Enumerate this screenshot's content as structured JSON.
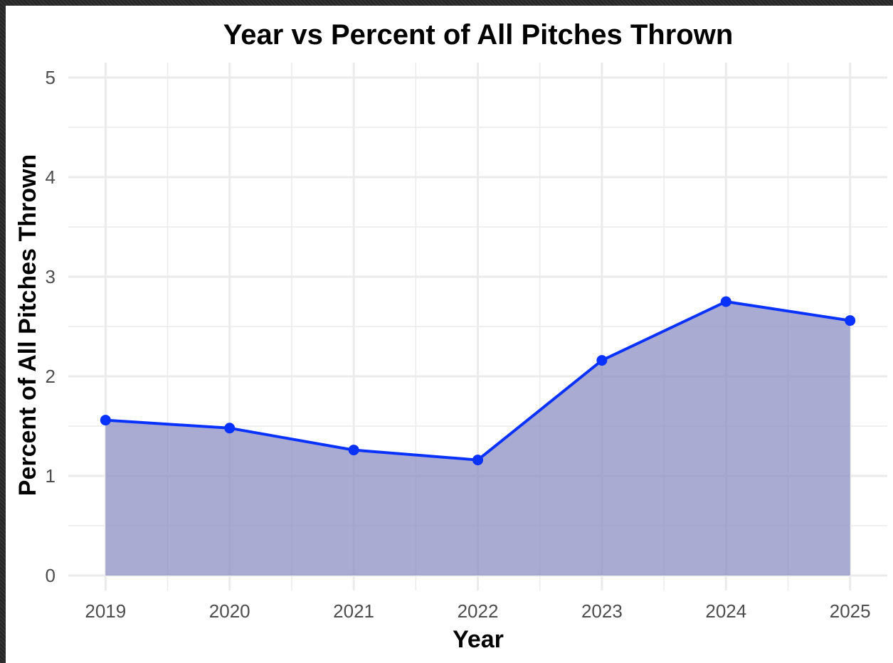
{
  "chart_data": {
    "type": "area",
    "title": "Year vs Percent of All Pitches Thrown",
    "xlabel": "Year",
    "ylabel": "Percent of All Pitches Thrown",
    "x": [
      2019,
      2020,
      2021,
      2022,
      2023,
      2024,
      2025
    ],
    "x_tick_labels": [
      "2019",
      "2020",
      "2021",
      "2022",
      "2023",
      "2024",
      "2025"
    ],
    "y_tick_labels": [
      "0",
      "1",
      "2",
      "3",
      "4",
      "5"
    ],
    "y_ticks": [
      0,
      1,
      2,
      3,
      4,
      5
    ],
    "series": [
      {
        "values": [
          1.56,
          1.48,
          1.26,
          1.16,
          2.16,
          2.75,
          2.56
        ]
      }
    ],
    "xlim": [
      2018.7,
      2025.3
    ],
    "ylim": [
      -0.15,
      5.15
    ],
    "grid": true,
    "legend": "none",
    "colors": {
      "line": "#0a32ff",
      "fill": "#8c8fc4",
      "grid": "#ebebeb"
    }
  }
}
